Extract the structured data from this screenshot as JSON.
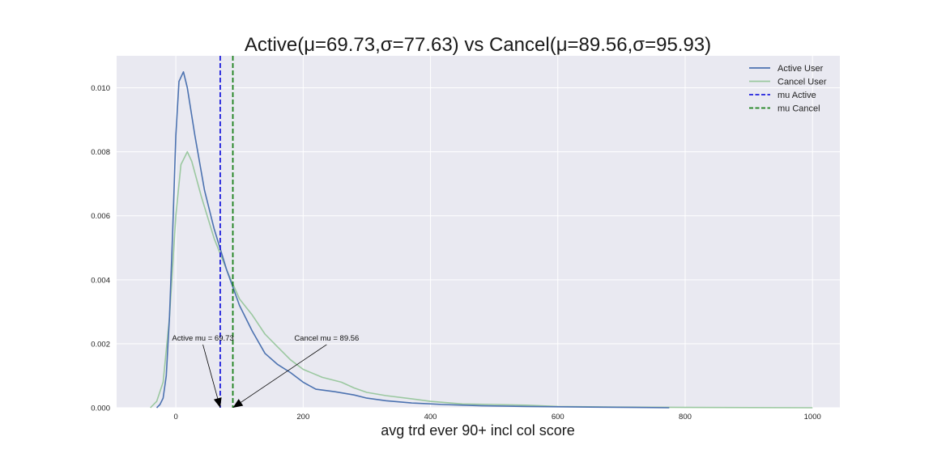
{
  "chart_data": {
    "type": "line",
    "title": "Active(μ=69.73,σ=77.63) vs Cancel(μ=89.56,σ=95.93)",
    "xlabel": "avg trd ever 90+ incl col score",
    "ylabel": "",
    "xlim": [
      -93,
      1043
    ],
    "ylim": [
      0,
      0.011
    ],
    "x_ticks": [
      0,
      200,
      400,
      600,
      800,
      1000
    ],
    "y_ticks": [
      0,
      0.002,
      0.004,
      0.006,
      0.008,
      0.01
    ],
    "x_tick_labels": [
      "0",
      "200",
      "400",
      "600",
      "800",
      "1000"
    ],
    "y_tick_labels": [
      "0.000",
      "0.002",
      "0.004",
      "0.006",
      "0.008",
      "0.010"
    ],
    "grid": true,
    "legend_position": "top-right",
    "series": [
      {
        "name": "Active User",
        "color": "#4c72b0",
        "style": "solid",
        "points": [
          [
            -30,
            0
          ],
          [
            -25,
            0.0001
          ],
          [
            -20,
            0.0003
          ],
          [
            -15,
            0.001
          ],
          [
            -10,
            0.0028
          ],
          [
            -5,
            0.0055
          ],
          [
            0,
            0.0085
          ],
          [
            5,
            0.0102
          ],
          [
            12,
            0.0105
          ],
          [
            18,
            0.01
          ],
          [
            30,
            0.0085
          ],
          [
            45,
            0.0068
          ],
          [
            60,
            0.0056
          ],
          [
            80,
            0.0043
          ],
          [
            100,
            0.0032
          ],
          [
            120,
            0.0024
          ],
          [
            140,
            0.0017
          ],
          [
            160,
            0.00135
          ],
          [
            180,
            0.0011
          ],
          [
            200,
            0.0008
          ],
          [
            220,
            0.00058
          ],
          [
            250,
            0.0005
          ],
          [
            280,
            0.0004
          ],
          [
            300,
            0.0003
          ],
          [
            330,
            0.00022
          ],
          [
            370,
            0.00015
          ],
          [
            420,
            0.0001
          ],
          [
            480,
            6e-05
          ],
          [
            550,
            4e-05
          ],
          [
            650,
            2e-05
          ],
          [
            720,
            1e-05
          ],
          [
            775,
            0
          ]
        ]
      },
      {
        "name": "Cancel User",
        "color": "#9bc8a0",
        "style": "solid",
        "points": [
          [
            -40,
            0
          ],
          [
            -30,
            0.0002
          ],
          [
            -20,
            0.0008
          ],
          [
            -10,
            0.0028
          ],
          [
            0,
            0.006
          ],
          [
            8,
            0.0076
          ],
          [
            18,
            0.008
          ],
          [
            25,
            0.0077
          ],
          [
            40,
            0.0066
          ],
          [
            60,
            0.0053
          ],
          [
            80,
            0.0043
          ],
          [
            100,
            0.0034
          ],
          [
            120,
            0.0029
          ],
          [
            140,
            0.0023
          ],
          [
            160,
            0.0019
          ],
          [
            180,
            0.0015
          ],
          [
            200,
            0.0012
          ],
          [
            230,
            0.00095
          ],
          [
            260,
            0.0008
          ],
          [
            280,
            0.00062
          ],
          [
            300,
            0.00048
          ],
          [
            330,
            0.00038
          ],
          [
            370,
            0.00028
          ],
          [
            400,
            0.0002
          ],
          [
            450,
            0.00012
          ],
          [
            500,
            0.0001
          ],
          [
            550,
            8e-05
          ],
          [
            600,
            4e-05
          ],
          [
            700,
            2e-05
          ],
          [
            800,
            1e-05
          ],
          [
            1000,
            0
          ]
        ]
      }
    ],
    "vlines": [
      {
        "name": "mu Active",
        "x": 69.73,
        "color": "#1f1fdd",
        "style": "dashed"
      },
      {
        "name": "mu Cancel",
        "x": 89.56,
        "color": "#1a801a",
        "style": "dashed"
      }
    ],
    "annotations": [
      {
        "text": "Active mu = 69.73",
        "text_x": -6,
        "text_y": 0.0021,
        "arrow_to_x": 69.73,
        "arrow_to_y": 0
      },
      {
        "text": "Cancel mu = 89.56",
        "text_x": 186,
        "text_y": 0.0021,
        "arrow_to_x": 89.56,
        "arrow_to_y": 0
      }
    ],
    "legend": [
      {
        "label": "Active User",
        "color": "#4c72b0",
        "style": "solid"
      },
      {
        "label": "Cancel User",
        "color": "#9bc8a0",
        "style": "solid"
      },
      {
        "label": "mu Active",
        "color": "#1f1fdd",
        "style": "dashed"
      },
      {
        "label": "mu Cancel",
        "color": "#1a801a",
        "style": "dashed"
      }
    ]
  }
}
